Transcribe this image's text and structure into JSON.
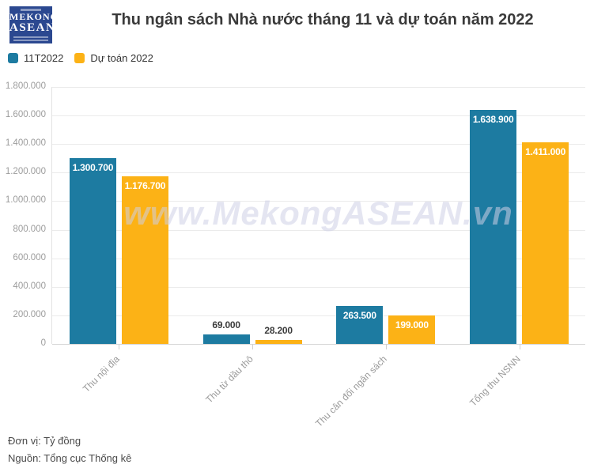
{
  "header": {
    "logo": {
      "line1": "MEKONG",
      "line2": "ASEAN"
    }
  },
  "chart_data": {
    "type": "bar",
    "title": "Thu ngân sách Nhà nước tháng 11 và dự toán năm 2022",
    "categories": [
      "Thu nội địa",
      "Thu từ dầu thô",
      "Thu cân đối ngân sách",
      "Tổng thu NSNN"
    ],
    "series": [
      {
        "name": "11T2022",
        "color": "#1d7ba1",
        "values": [
          1300700,
          69000,
          263500,
          1638900
        ]
      },
      {
        "name": "Dự toán 2022",
        "color": "#fcb216",
        "values": [
          1176700,
          28200,
          199000,
          1411000
        ]
      }
    ],
    "ylim": [
      0,
      1800000
    ],
    "ytick_step": 200000,
    "ytick_labels": [
      "0",
      "200.000",
      "400.000",
      "600.000",
      "800.000",
      "1.000.000",
      "1.200.000",
      "1.400.000",
      "1.600.000",
      "1.800.000"
    ],
    "grid": true,
    "legend_position": "top-left",
    "value_labels": [
      "1.300.700",
      "69.000",
      "263.500",
      "1.638.900",
      "1.176.700",
      "28.200",
      "199.000",
      "1.411.000"
    ]
  },
  "legend": [
    {
      "label": "11T2022",
      "color": "#1d7ba1"
    },
    {
      "label": "Dự toán 2022",
      "color": "#fcb216"
    }
  ],
  "watermark": "www.MekongASEAN.vn",
  "footer": {
    "unit": "Đơn vị: Tỷ đồng",
    "source": "Nguồn: Tổng cục Thống kê"
  }
}
